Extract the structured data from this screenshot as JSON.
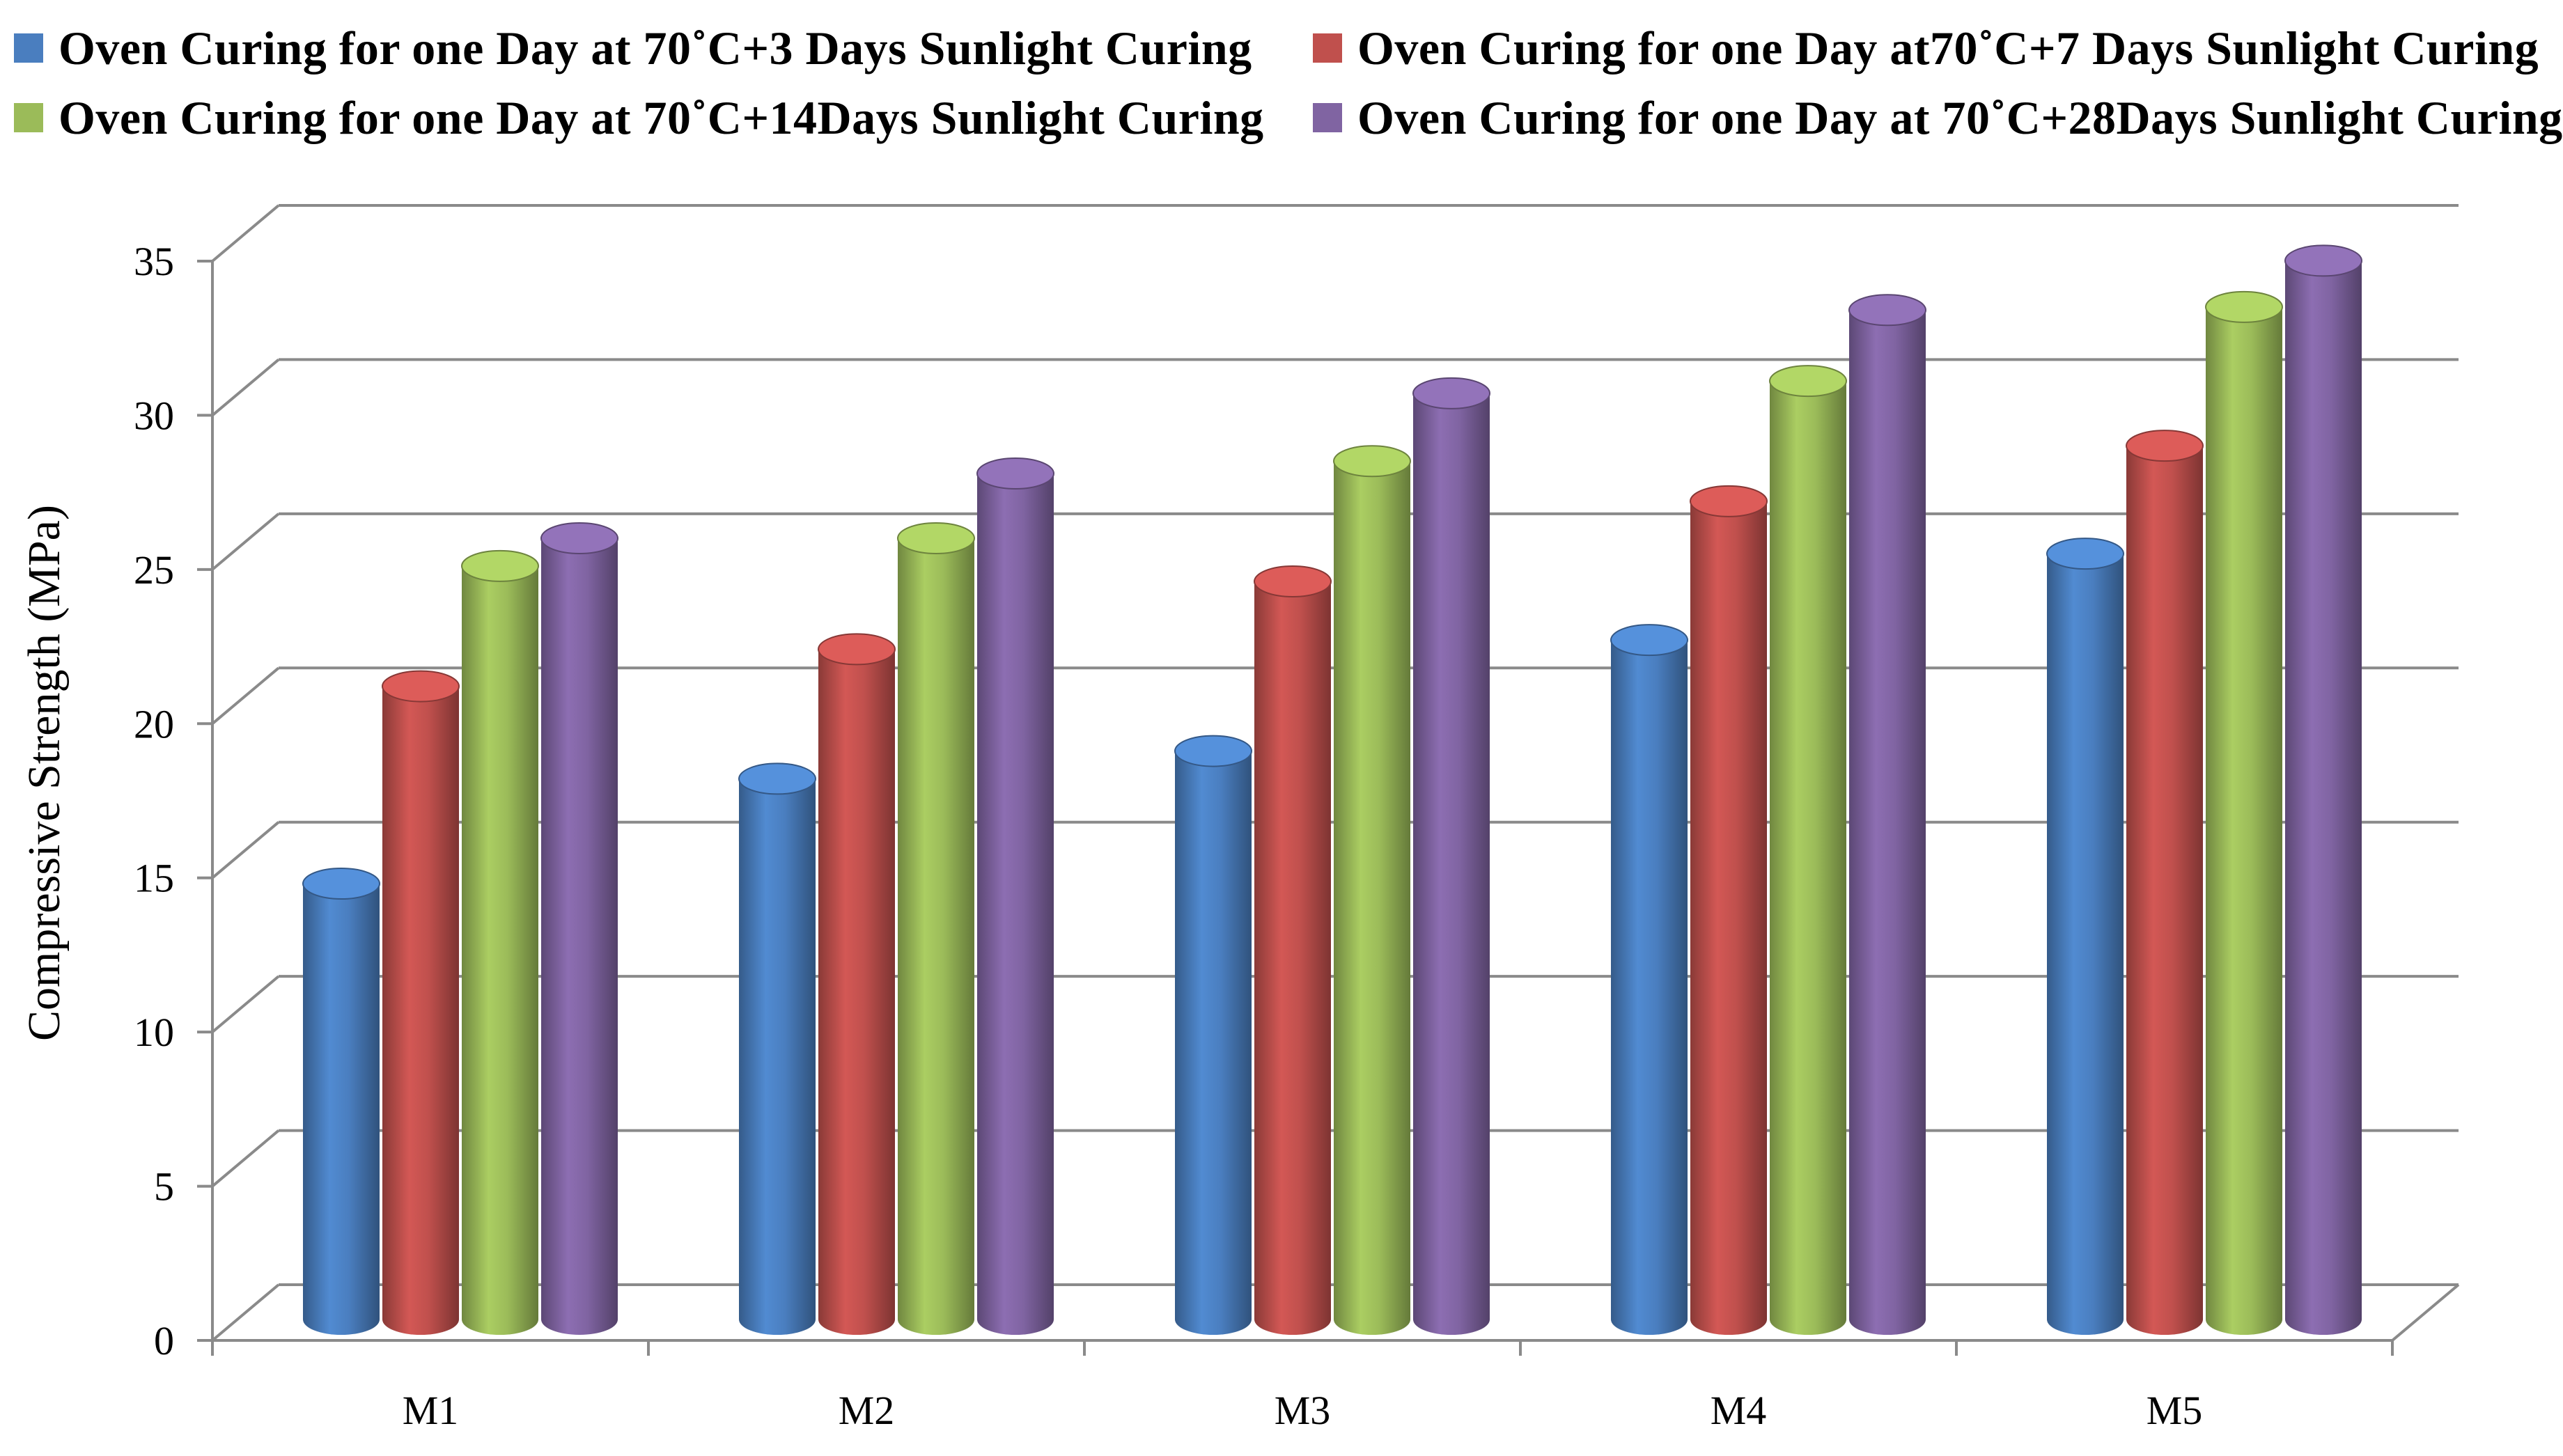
{
  "chart_data": {
    "type": "bar",
    "title": "",
    "xlabel": "",
    "ylabel": "Compressive Strength (MPa)",
    "categories": [
      "M1",
      "M2",
      "M3",
      "M4",
      "M5"
    ],
    "ylim": [
      0,
      35
    ],
    "yticks": [
      0,
      5,
      10,
      15,
      20,
      25,
      30,
      35
    ],
    "grid": true,
    "legend_position": "top",
    "series": [
      {
        "name": "Oven Curing for one Day at 70˚C+3 Days Sunlight Curing",
        "color": "#4a7ebf",
        "values": [
          14.0,
          17.4,
          18.3,
          21.9,
          24.7
        ]
      },
      {
        "name": "Oven Curing for one Day at70˚C+7 Days Sunlight Curing",
        "color": "#c0504d",
        "values": [
          20.4,
          21.6,
          23.8,
          26.4,
          28.2
        ]
      },
      {
        "name": "Oven Curing for one Day at 70˚C+14Days Sunlight Curing",
        "color": "#9bbb59",
        "values": [
          24.3,
          25.2,
          27.7,
          30.3,
          32.7
        ]
      },
      {
        "name": "Oven Curing for one Day at 70˚C+28Days Sunlight Curing",
        "color": "#8064a2",
        "values": [
          25.2,
          27.3,
          29.9,
          32.6,
          34.2
        ]
      }
    ]
  }
}
